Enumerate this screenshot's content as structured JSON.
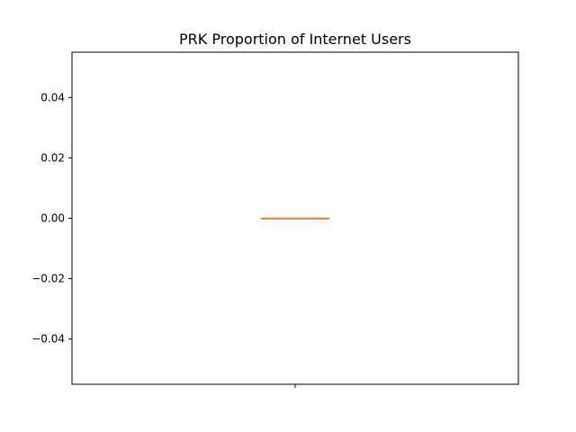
{
  "chart_data": {
    "type": "box",
    "title": "PRK Proportion of Internet Users",
    "xlabel": "",
    "ylabel": "",
    "ylim": [
      -0.055,
      0.055
    ],
    "yticks": [
      0.04,
      0.02,
      0.0,
      -0.02,
      -0.04
    ],
    "ytick_labels": [
      "0.04",
      "0.02",
      "0.00",
      "−0.02",
      "−0.04"
    ],
    "xtick_labels": [
      ""
    ],
    "grid": false,
    "boxes": [
      {
        "min": 0.0,
        "q1": 0.0,
        "median": 0.0,
        "q3": 0.0,
        "max": 0.0
      }
    ],
    "colors": {
      "box": "#000000",
      "median": "#ff7f0e",
      "axes": "#000000",
      "background": "#ffffff"
    }
  }
}
